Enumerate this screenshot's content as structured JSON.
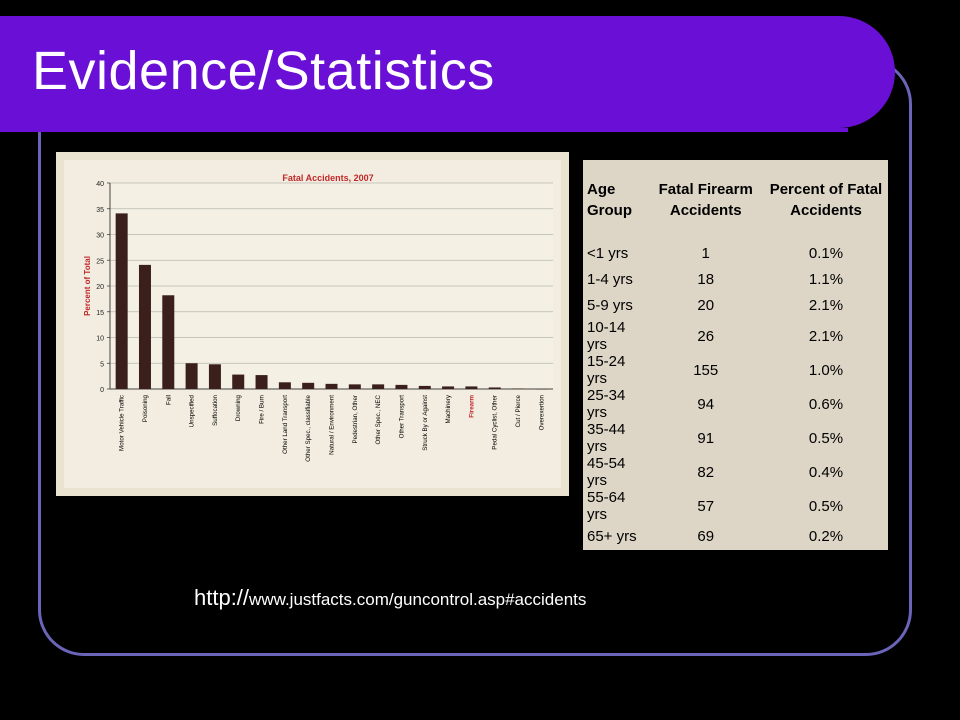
{
  "slide": {
    "title": "Evidence/Statistics",
    "source_prefix": "http://",
    "source_rest": "www.justfacts.com/guncontrol.asp#accidents"
  },
  "chart_data": {
    "type": "bar",
    "title": "Fatal Accidents, 2007",
    "ylabel": "Percent of Total",
    "xlabel": "",
    "ylim": [
      0,
      40
    ],
    "yticks": [
      0,
      5,
      10,
      15,
      20,
      25,
      30,
      35,
      40
    ],
    "grid": true,
    "categories": [
      "Motor Vehicle Traffic",
      "Poisoning",
      "Fall",
      "Unspecified",
      "Suffocation",
      "Drowning",
      "Fire / Burn",
      "Other Land Transport",
      "Other Spec., classifiable",
      "Natural / Environment",
      "Pedestrian, Other",
      "Other Spec., NEC",
      "Other Transport",
      "Struck By or Against",
      "Machinery",
      "Firearm",
      "Pedal Cyclist, Other",
      "Cut / Pierce",
      "Overexertion"
    ],
    "values": [
      34.1,
      24.1,
      18.2,
      5.0,
      4.8,
      2.8,
      2.7,
      1.3,
      1.2,
      1.0,
      0.9,
      0.9,
      0.8,
      0.6,
      0.5,
      0.5,
      0.3,
      0.1,
      0.0
    ],
    "highlight_category": "Firearm",
    "colors": {
      "bar": "#3a1f1d",
      "label": "#000000",
      "highlight": "#c0282a",
      "title": "#c0282a",
      "axis": "#444444",
      "grid": "#b8b8b0"
    }
  },
  "table": {
    "headers": [
      "Age Group",
      "Fatal Firearm Accidents",
      "Percent of Fatal Accidents"
    ],
    "rows": [
      [
        "<1 yrs",
        "1",
        "0.1%"
      ],
      [
        "1-4 yrs",
        "18",
        "1.1%"
      ],
      [
        "5-9 yrs",
        "20",
        "2.1%"
      ],
      [
        "10-14 yrs",
        "26",
        "2.1%"
      ],
      [
        "15-24 yrs",
        "155",
        "1.0%"
      ],
      [
        "25-34 yrs",
        "94",
        "0.6%"
      ],
      [
        "35-44 yrs",
        "91",
        "0.5%"
      ],
      [
        "45-54 yrs",
        "82",
        "0.4%"
      ],
      [
        "55-64 yrs",
        "57",
        "0.5%"
      ],
      [
        "65+ yrs",
        "69",
        "0.2%"
      ]
    ]
  }
}
